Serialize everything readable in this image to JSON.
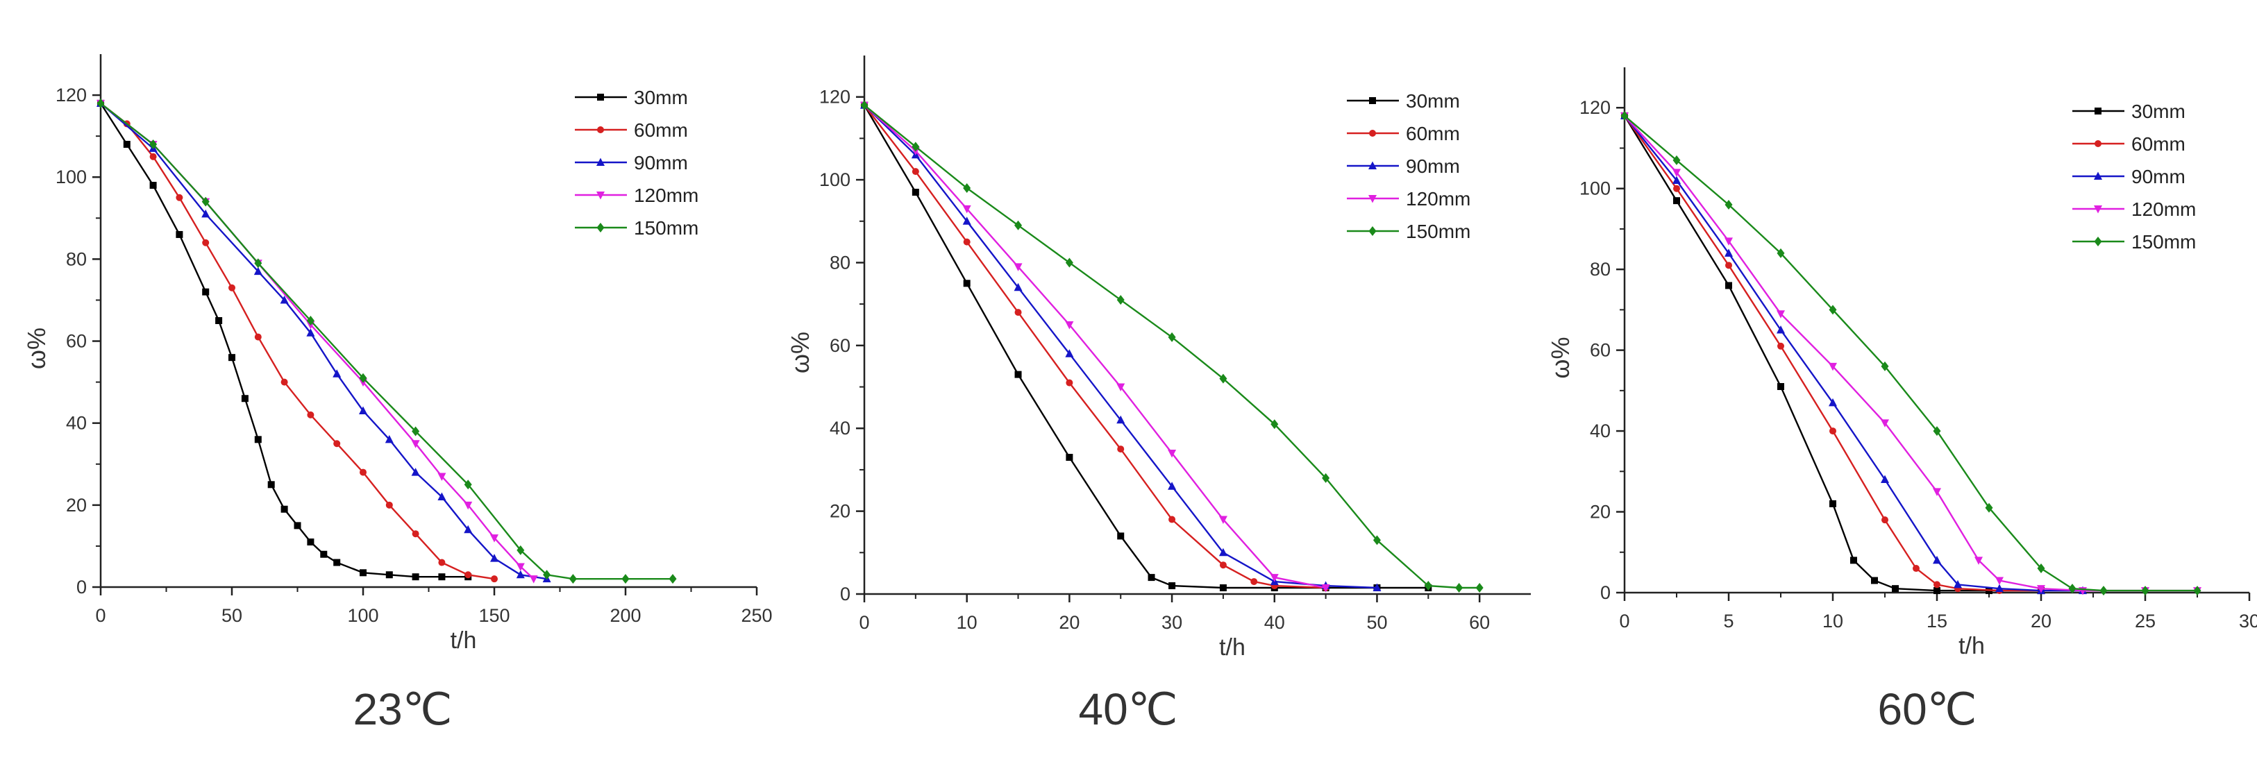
{
  "chart_data": [
    {
      "type": "line",
      "panel_label": "23℃",
      "xlabel": "t/h",
      "ylabel": "ω%",
      "xlim": [
        0,
        250
      ],
      "ylim": [
        0,
        130
      ],
      "xticks": [
        0,
        50,
        100,
        150,
        200,
        250
      ],
      "xtick_labels": [
        "0",
        "50",
        "100",
        "150",
        "200",
        "250"
      ],
      "yticks": [
        0,
        20,
        40,
        60,
        80,
        100,
        120
      ],
      "ytick_labels": [
        "0",
        "20",
        "40",
        "60",
        "80",
        "100",
        "120"
      ],
      "legend_position": "top-right",
      "series": [
        {
          "name": "30mm",
          "color": "#000000",
          "marker": "square",
          "x": [
            0,
            10,
            20,
            30,
            40,
            45,
            50,
            55,
            60,
            65,
            70,
            75,
            80,
            85,
            90,
            100,
            110,
            120,
            130,
            140
          ],
          "y": [
            118,
            108,
            98,
            86,
            72,
            65,
            56,
            46,
            36,
            25,
            19,
            15,
            11,
            8,
            6,
            3.5,
            3,
            2.5,
            2.5,
            2.5
          ]
        },
        {
          "name": "60mm",
          "color": "#d62020",
          "marker": "circle",
          "x": [
            0,
            10,
            20,
            30,
            40,
            50,
            60,
            70,
            80,
            90,
            100,
            110,
            120,
            130,
            140,
            150
          ],
          "y": [
            118,
            113,
            105,
            95,
            84,
            73,
            61,
            50,
            42,
            35,
            28,
            20,
            13,
            6,
            3,
            2
          ]
        },
        {
          "name": "90mm",
          "color": "#1515c8",
          "marker": "triangle",
          "x": [
            0,
            20,
            40,
            60,
            70,
            80,
            90,
            100,
            110,
            120,
            130,
            140,
            150,
            160,
            170
          ],
          "y": [
            118,
            107,
            91,
            77,
            70,
            62,
            52,
            43,
            36,
            28,
            22,
            14,
            7,
            3,
            2
          ]
        },
        {
          "name": "120mm",
          "color": "#e020e0",
          "marker": "triangle-down",
          "x": [
            0,
            20,
            40,
            60,
            80,
            100,
            120,
            130,
            140,
            150,
            160,
            165
          ],
          "y": [
            118,
            108,
            94,
            79,
            64,
            50,
            35,
            27,
            20,
            12,
            5,
            2
          ]
        },
        {
          "name": "150mm",
          "color": "#1a8a1a",
          "marker": "diamond",
          "x": [
            0,
            20,
            40,
            60,
            80,
            100,
            120,
            140,
            160,
            170,
            180,
            200,
            218
          ],
          "y": [
            118,
            108,
            94,
            79,
            65,
            51,
            38,
            25,
            9,
            3,
            2,
            2,
            2
          ]
        }
      ]
    },
    {
      "type": "line",
      "panel_label": "40℃",
      "xlabel": "t/h",
      "ylabel": "ω%",
      "xlim": [
        0,
        65
      ],
      "ylim": [
        0,
        130
      ],
      "xticks": [
        0,
        10,
        20,
        30,
        40,
        50,
        60
      ],
      "xtick_labels": [
        "0",
        "10",
        "20",
        "30",
        "40",
        "50",
        "60"
      ],
      "yticks": [
        0,
        20,
        40,
        60,
        80,
        100,
        120
      ],
      "ytick_labels": [
        "0",
        "20",
        "40",
        "60",
        "80",
        "100",
        "120"
      ],
      "legend_position": "top-right",
      "series": [
        {
          "name": "30mm",
          "color": "#000000",
          "marker": "square",
          "x": [
            0,
            5,
            10,
            15,
            20,
            25,
            28,
            30,
            35,
            40,
            45,
            50,
            55
          ],
          "y": [
            118,
            97,
            75,
            53,
            33,
            14,
            4,
            2,
            1.5,
            1.5,
            1.5,
            1.5,
            1.5
          ]
        },
        {
          "name": "60mm",
          "color": "#d62020",
          "marker": "circle",
          "x": [
            0,
            5,
            10,
            15,
            20,
            25,
            30,
            35,
            38,
            40,
            45
          ],
          "y": [
            118,
            102,
            85,
            68,
            51,
            35,
            18,
            7,
            3,
            2,
            1.5
          ]
        },
        {
          "name": "90mm",
          "color": "#1515c8",
          "marker": "triangle",
          "x": [
            0,
            5,
            10,
            15,
            20,
            25,
            30,
            35,
            40,
            45,
            50
          ],
          "y": [
            118,
            106,
            90,
            74,
            58,
            42,
            26,
            10,
            3,
            2,
            1.5
          ]
        },
        {
          "name": "120mm",
          "color": "#e020e0",
          "marker": "triangle-down",
          "x": [
            0,
            5,
            10,
            15,
            20,
            25,
            30,
            35,
            40,
            45
          ],
          "y": [
            118,
            107,
            93,
            79,
            65,
            50,
            34,
            18,
            4,
            1.5
          ]
        },
        {
          "name": "150mm",
          "color": "#1a8a1a",
          "marker": "diamond",
          "x": [
            0,
            5,
            10,
            15,
            20,
            25,
            30,
            35,
            40,
            45,
            50,
            55,
            58,
            60
          ],
          "y": [
            118,
            108,
            98,
            89,
            80,
            71,
            62,
            52,
            41,
            28,
            13,
            2,
            1.5,
            1.5
          ]
        }
      ]
    },
    {
      "type": "line",
      "panel_label": "60℃",
      "xlabel": "t/h",
      "ylabel": "ω%",
      "xlim": [
        0,
        30
      ],
      "ylim": [
        0,
        130
      ],
      "xticks": [
        0,
        5,
        10,
        15,
        20,
        25,
        30
      ],
      "xtick_labels": [
        "0",
        "5",
        "10",
        "15",
        "20",
        "25",
        "30"
      ],
      "yticks": [
        0,
        20,
        40,
        60,
        80,
        100,
        120
      ],
      "ytick_labels": [
        "0",
        "20",
        "40",
        "60",
        "80",
        "100",
        "120"
      ],
      "legend_position": "top-right",
      "series": [
        {
          "name": "30mm",
          "color": "#000000",
          "marker": "square",
          "x": [
            0,
            2.5,
            5,
            7.5,
            10,
            11,
            12,
            13,
            15,
            17.5,
            20
          ],
          "y": [
            118,
            97,
            76,
            51,
            22,
            8,
            3,
            1,
            0.5,
            0.5,
            0.5
          ]
        },
        {
          "name": "60mm",
          "color": "#d62020",
          "marker": "circle",
          "x": [
            0,
            2.5,
            5,
            7.5,
            10,
            12.5,
            14,
            15,
            16,
            18,
            20
          ],
          "y": [
            118,
            100,
            81,
            61,
            40,
            18,
            6,
            2,
            1,
            0.5,
            0.5
          ]
        },
        {
          "name": "90mm",
          "color": "#1515c8",
          "marker": "triangle",
          "x": [
            0,
            2.5,
            5,
            7.5,
            10,
            12.5,
            15,
            16,
            18,
            20,
            22
          ],
          "y": [
            118,
            102,
            84,
            65,
            47,
            28,
            8,
            2,
            1,
            0.5,
            0.5
          ]
        },
        {
          "name": "120mm",
          "color": "#e020e0",
          "marker": "triangle-down",
          "x": [
            0,
            2.5,
            5,
            7.5,
            10,
            12.5,
            15,
            17,
            18,
            20,
            22,
            25,
            27.5
          ],
          "y": [
            118,
            104,
            87,
            69,
            56,
            42,
            25,
            8,
            3,
            1,
            0.5,
            0.5,
            0.5
          ]
        },
        {
          "name": "150mm",
          "color": "#1a8a1a",
          "marker": "diamond",
          "x": [
            0,
            2.5,
            5,
            7.5,
            10,
            12.5,
            15,
            17.5,
            20,
            21.5,
            23,
            25,
            27.5
          ],
          "y": [
            118,
            107,
            96,
            84,
            70,
            56,
            40,
            21,
            6,
            1,
            0.5,
            0.5,
            0.5
          ]
        }
      ]
    }
  ]
}
